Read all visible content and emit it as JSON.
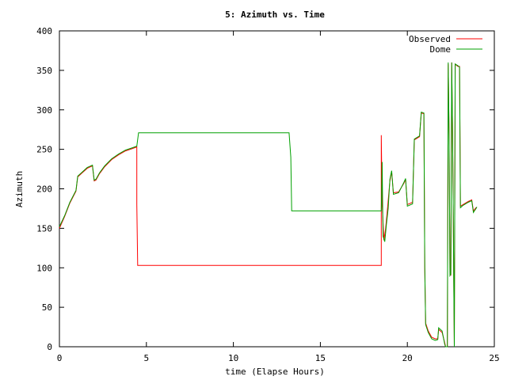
{
  "chart_data": {
    "type": "line",
    "title": "5: Azimuth vs. Time",
    "xlabel": "time (Elapse Hours)",
    "ylabel": "Azimuth",
    "xlim": [
      0,
      25
    ],
    "ylim": [
      0,
      400
    ],
    "xticks": [
      0,
      5,
      10,
      15,
      20,
      25
    ],
    "yticks": [
      0,
      50,
      100,
      150,
      200,
      250,
      300,
      350,
      400
    ],
    "grid": false,
    "legend_position": "top-right",
    "series": [
      {
        "name": "Observed",
        "color": "#ff0000",
        "points": [
          [
            0.0,
            150
          ],
          [
            0.3,
            165
          ],
          [
            0.6,
            182
          ],
          [
            0.95,
            197
          ],
          [
            1.05,
            215
          ],
          [
            1.3,
            220
          ],
          [
            1.6,
            226
          ],
          [
            1.9,
            229
          ],
          [
            2.0,
            210
          ],
          [
            2.1,
            211
          ],
          [
            2.3,
            219
          ],
          [
            2.6,
            228
          ],
          [
            3.0,
            237
          ],
          [
            3.4,
            243
          ],
          [
            3.8,
            248
          ],
          [
            4.2,
            251
          ],
          [
            4.45,
            253
          ],
          [
            4.45,
            180
          ],
          [
            4.5,
            103
          ],
          [
            18.5,
            103
          ],
          [
            18.5,
            268
          ],
          [
            18.55,
            180
          ],
          [
            18.65,
            135
          ],
          [
            18.75,
            150
          ],
          [
            18.85,
            172
          ],
          [
            19.0,
            210
          ],
          [
            19.1,
            222
          ],
          [
            19.2,
            195
          ],
          [
            19.5,
            196
          ],
          [
            19.8,
            207
          ],
          [
            19.9,
            212
          ],
          [
            20.0,
            180
          ],
          [
            20.3,
            183
          ],
          [
            20.4,
            262
          ],
          [
            20.7,
            266
          ],
          [
            20.8,
            296
          ],
          [
            20.95,
            295
          ],
          [
            21.0,
            100
          ],
          [
            21.05,
            30
          ],
          [
            21.2,
            20
          ],
          [
            21.4,
            12
          ],
          [
            21.6,
            10
          ],
          [
            21.75,
            10
          ],
          [
            21.8,
            22
          ],
          [
            22.0,
            18
          ],
          [
            22.15,
            5
          ],
          [
            22.2,
            0
          ],
          [
            22.3,
            0
          ],
          [
            22.35,
            358
          ],
          [
            22.4,
            270
          ],
          [
            22.45,
            92
          ],
          [
            22.5,
            91
          ],
          [
            22.55,
            360
          ],
          [
            22.6,
            270
          ],
          [
            22.7,
            0
          ],
          [
            22.75,
            358
          ],
          [
            22.9,
            355
          ],
          [
            23.0,
            355
          ],
          [
            23.05,
            178
          ],
          [
            23.2,
            180
          ],
          [
            23.5,
            184
          ],
          [
            23.7,
            186
          ],
          [
            23.8,
            172
          ],
          [
            23.95,
            176
          ],
          [
            24.0,
            176
          ]
        ]
      },
      {
        "name": "Dome",
        "color": "#00a000",
        "points": [
          [
            0.0,
            152
          ],
          [
            0.3,
            166
          ],
          [
            0.6,
            183
          ],
          [
            0.95,
            198
          ],
          [
            1.05,
            216
          ],
          [
            1.3,
            221
          ],
          [
            1.6,
            227
          ],
          [
            1.9,
            230
          ],
          [
            2.0,
            211
          ],
          [
            2.1,
            212
          ],
          [
            2.3,
            220
          ],
          [
            2.6,
            229
          ],
          [
            3.0,
            238
          ],
          [
            3.4,
            244
          ],
          [
            3.8,
            249
          ],
          [
            4.2,
            252
          ],
          [
            4.45,
            254
          ],
          [
            4.55,
            271
          ],
          [
            13.2,
            271
          ],
          [
            13.3,
            240
          ],
          [
            13.35,
            172
          ],
          [
            18.5,
            172
          ],
          [
            18.55,
            234
          ],
          [
            18.6,
            140
          ],
          [
            18.7,
            133
          ],
          [
            18.8,
            155
          ],
          [
            18.9,
            175
          ],
          [
            19.0,
            212
          ],
          [
            19.1,
            223
          ],
          [
            19.2,
            193
          ],
          [
            19.5,
            195
          ],
          [
            19.8,
            208
          ],
          [
            19.9,
            213
          ],
          [
            20.0,
            178
          ],
          [
            20.3,
            181
          ],
          [
            20.4,
            263
          ],
          [
            20.7,
            267
          ],
          [
            20.8,
            297
          ],
          [
            20.95,
            296
          ],
          [
            21.0,
            100
          ],
          [
            21.05,
            28
          ],
          [
            21.2,
            18
          ],
          [
            21.4,
            10
          ],
          [
            21.6,
            8
          ],
          [
            21.75,
            9
          ],
          [
            21.8,
            24
          ],
          [
            22.0,
            20
          ],
          [
            22.15,
            3
          ],
          [
            22.2,
            0
          ],
          [
            22.3,
            0
          ],
          [
            22.35,
            360
          ],
          [
            22.4,
            268
          ],
          [
            22.45,
            90
          ],
          [
            22.5,
            92
          ],
          [
            22.55,
            360
          ],
          [
            22.6,
            268
          ],
          [
            22.7,
            0
          ],
          [
            22.75,
            358
          ],
          [
            22.9,
            356
          ],
          [
            23.0,
            354
          ],
          [
            23.05,
            176
          ],
          [
            23.2,
            179
          ],
          [
            23.5,
            183
          ],
          [
            23.7,
            185
          ],
          [
            23.8,
            170
          ],
          [
            23.95,
            175
          ],
          [
            24.0,
            177
          ]
        ]
      }
    ]
  }
}
